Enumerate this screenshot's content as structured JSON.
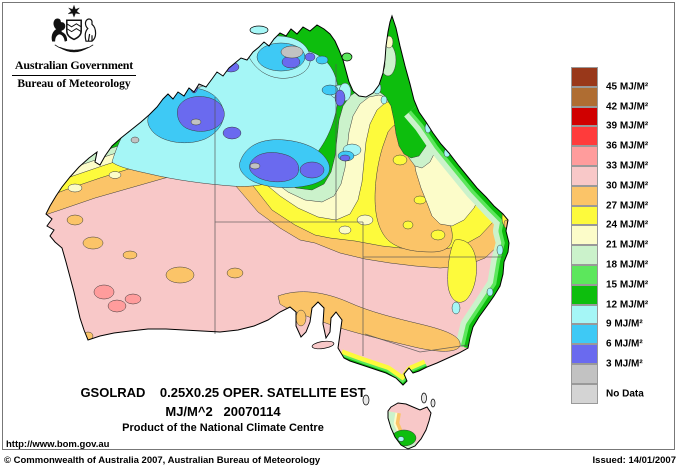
{
  "header": {
    "government": "Australian Government",
    "bureau": "Bureau of Meteorology"
  },
  "map": {
    "caption_line1": "GSOLRAD    0.25X0.25 OPER. SATELLITE EST",
    "caption_line2": "MJ/M^2   20070114",
    "caption_line3": "Product of the National Climate Centre",
    "url": "http://www.bom.gov.au"
  },
  "legend": {
    "unit": "MJ/M²",
    "entries": [
      {
        "label": "45 MJ/M²",
        "color": "#99381A"
      },
      {
        "label": "42 MJ/M²",
        "color": "#AF6D32"
      },
      {
        "label": "39 MJ/M²",
        "color": "#D00000"
      },
      {
        "label": "36 MJ/M²",
        "color": "#FF3B3B"
      },
      {
        "label": "33 MJ/M²",
        "color": "#FF9C9C"
      },
      {
        "label": "30 MJ/M²",
        "color": "#F8C8C8"
      },
      {
        "label": "27 MJ/M²",
        "color": "#FBC468"
      },
      {
        "label": "24 MJ/M²",
        "color": "#FDFA3C"
      },
      {
        "label": "21 MJ/M²",
        "color": "#FCFCC9"
      },
      {
        "label": "18 MJ/M²",
        "color": "#CBF2CB"
      },
      {
        "label": "15 MJ/M²",
        "color": "#5CE75C"
      },
      {
        "label": "12 MJ/M²",
        "color": "#0DBE0D"
      },
      {
        "label": "9 MJ/M²",
        "color": "#A5F6F6"
      },
      {
        "label": "6 MJ/M²",
        "color": "#3EC9F5"
      },
      {
        "label": "3 MJ/M²",
        "color": "#6A6AEF"
      },
      {
        "label": "",
        "color": "#C2C2C2"
      },
      {
        "label": "No Data",
        "color": "#D4D4D4",
        "center": true
      }
    ]
  },
  "footer": {
    "copyright": "© Commonwealth of Australia 2007, Australian Bureau of Meteorology",
    "issued": "Issued: 14/01/2007"
  }
}
